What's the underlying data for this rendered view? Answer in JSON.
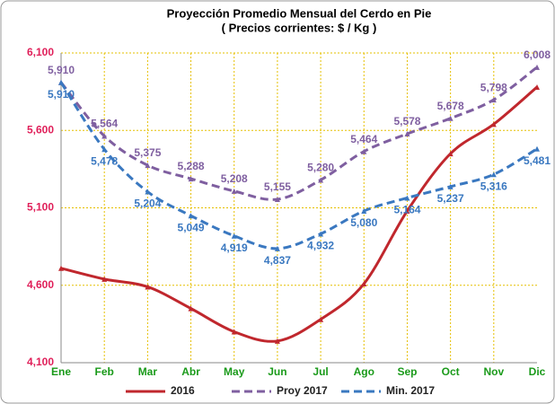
{
  "chart_data": {
    "type": "line",
    "title": "Proyección Promedio Mensual del Cerdo en Pie",
    "subtitle": "( Precios corrientes: $ / Kg )",
    "categories": [
      "Ene",
      "Feb",
      "Mar",
      "Abr",
      "May",
      "Jun",
      "Jul",
      "Ago",
      "Sep",
      "Oct",
      "Nov",
      "Dic"
    ],
    "ylim": [
      4100,
      6100
    ],
    "yticks": [
      {
        "value": 4100,
        "label": "4,100"
      },
      {
        "value": 4600,
        "label": "4,600"
      },
      {
        "value": 5100,
        "label": "5,100"
      },
      {
        "value": 5600,
        "label": "5,600"
      },
      {
        "value": 6100,
        "label": "6,100"
      }
    ],
    "grid": true,
    "legend": "bottom",
    "series": [
      {
        "name": "2016",
        "color": "#c0272d",
        "dash": false,
        "values": [
          4710,
          4640,
          4590,
          4450,
          4300,
          4240,
          4380,
          4610,
          5080,
          5450,
          5640,
          5880
        ]
      },
      {
        "name": "Proy 2017",
        "color": "#7f5fa0",
        "dash": true,
        "label_pos": "above",
        "values": [
          5910,
          5564,
          5375,
          5288,
          5208,
          5155,
          5280,
          5464,
          5578,
          5678,
          5798,
          6008
        ],
        "value_labels": [
          "5,910",
          "5,564",
          "5,375",
          "5,288",
          "5,208",
          "5,155",
          "5,280",
          "5,464",
          "5,578",
          "5,678",
          "5,798",
          "6,008"
        ]
      },
      {
        "name": "Min. 2017",
        "color": "#3a78c0",
        "dash": true,
        "label_pos": "below",
        "values": [
          5910,
          5478,
          5204,
          5049,
          4919,
          4837,
          4932,
          5080,
          5164,
          5237,
          5316,
          5481
        ],
        "value_labels": [
          "5,910",
          "5,478",
          "5,204",
          "5,049",
          "4,919",
          "4,837",
          "4,932",
          "5,080",
          "5,164",
          "5,237",
          "5,316",
          "5,481"
        ]
      }
    ]
  }
}
